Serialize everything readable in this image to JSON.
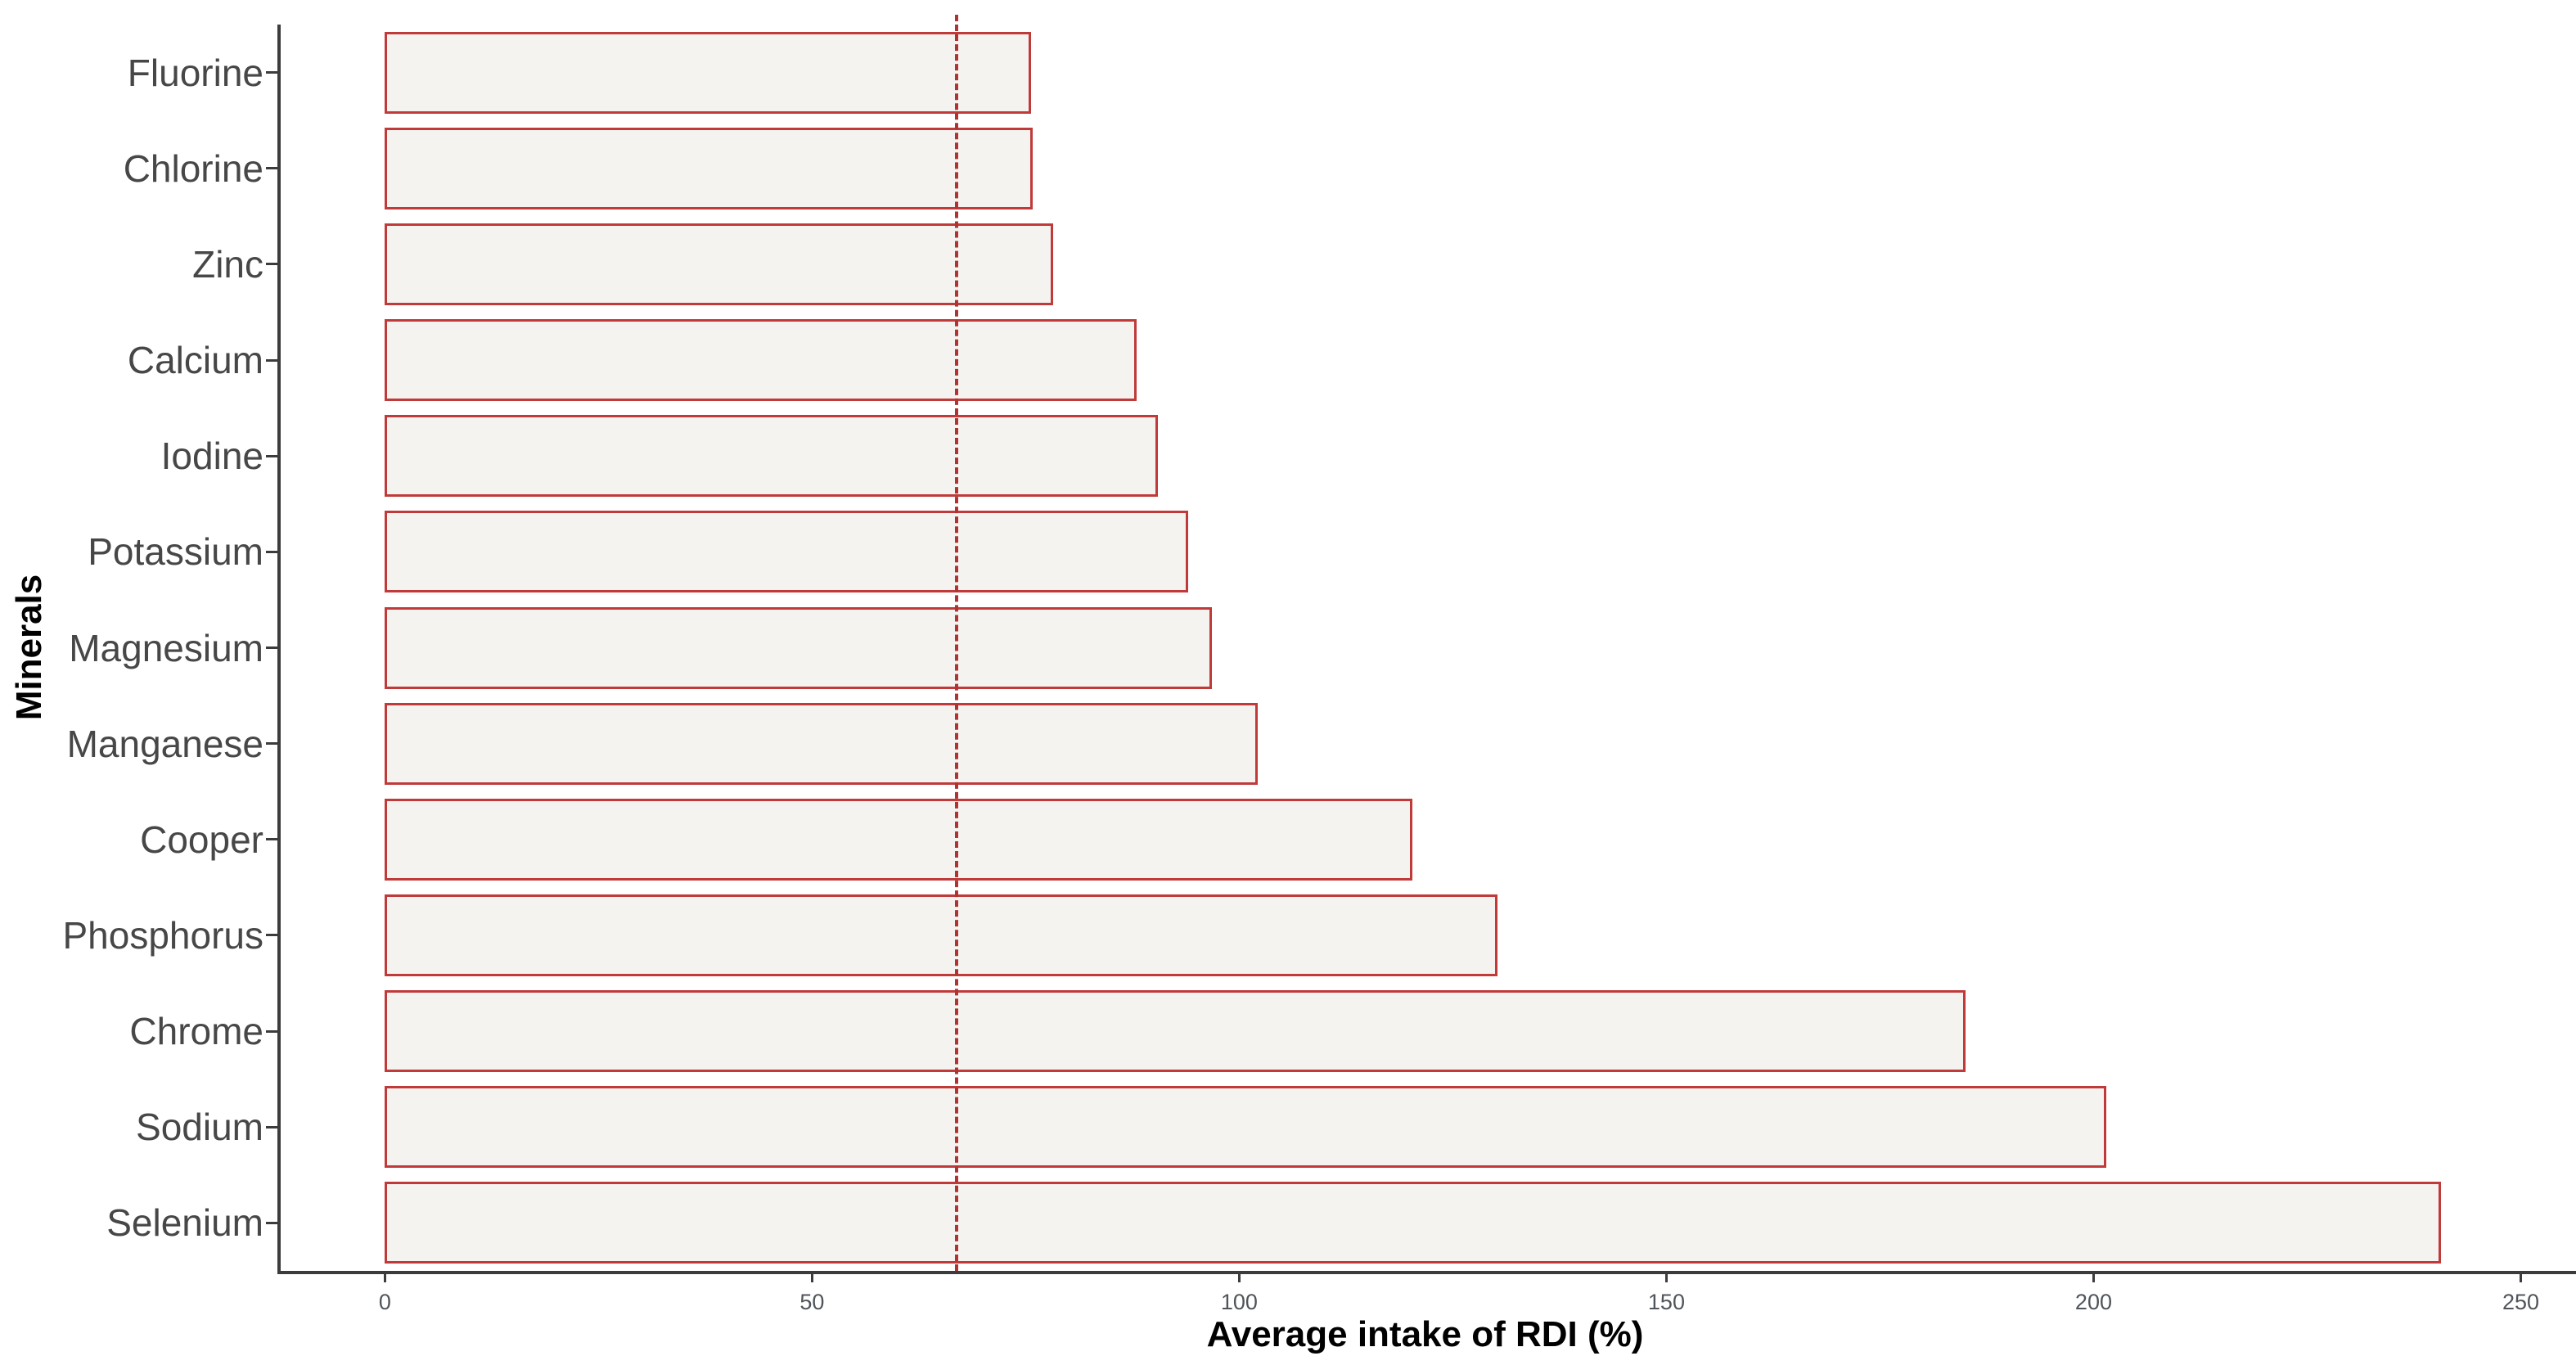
{
  "page": {
    "background": "#FFFFFF"
  },
  "chart_data": {
    "type": "bar",
    "orientation": "horizontal",
    "title": "",
    "xlabel": "Average intake of RDI (%)",
    "ylabel": "Minerals",
    "categories_top_to_bottom": [
      "Fluorine",
      "Chlorine",
      "Zinc",
      "Calcium",
      "Iodine",
      "Potassium",
      "Magnesium",
      "Manganese",
      "Cooper",
      "Phosphorus",
      "Chrome",
      "Sodium",
      "Selenium"
    ],
    "values": [
      75.6,
      75.8,
      78.2,
      88.0,
      90.5,
      94.0,
      96.8,
      102.2,
      120.3,
      130.2,
      185.0,
      201.5,
      240.7
    ],
    "reference_line_x": 66.7,
    "x_ticks": [
      0,
      50,
      100,
      150,
      200,
      250
    ],
    "xlim": [
      -12.2,
      255.7
    ],
    "grid": false,
    "legend": "none",
    "colors": {
      "bar_fill": "#F4F3F0",
      "bar_border": "#C03A3A",
      "reference_line": "#AE3434",
      "axis_line": "#3C3C3C",
      "y_tick_text": "#474747",
      "x_tick_text": "#50555B",
      "axis_title_text": "#000000"
    }
  }
}
